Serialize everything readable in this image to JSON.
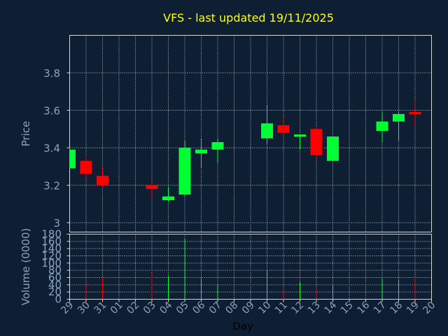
{
  "chart_data": [
    {
      "type": "candlestick",
      "title": "VFS - last updated 19/11/2025",
      "ylabel": "Price",
      "ylim": [
        2.95,
        4.0
      ],
      "yticks": [
        3,
        3.2,
        3.4,
        3.6,
        3.8
      ],
      "ytick_labels": [
        "3",
        "3.2",
        "3.4",
        "3.6",
        "3.8"
      ],
      "grid": true,
      "up_color": "#00ff33",
      "down_color": "#ff0000",
      "candles": [
        {
          "x": "29",
          "open": 3.29,
          "high": 3.4,
          "low": 3.29,
          "close": 3.39
        },
        {
          "x": "30",
          "open": 3.33,
          "high": 3.35,
          "low": 3.23,
          "close": 3.26
        },
        {
          "x": "31",
          "open": 3.25,
          "high": 3.29,
          "low": 3.19,
          "close": 3.2
        },
        {
          "x": "03",
          "open": 3.2,
          "high": 3.22,
          "low": 3.13,
          "close": 3.18
        },
        {
          "x": "04",
          "open": 3.12,
          "high": 3.19,
          "low": 3.11,
          "close": 3.14
        },
        {
          "x": "05",
          "open": 3.15,
          "high": 3.44,
          "low": 3.14,
          "close": 3.4
        },
        {
          "x": "06",
          "open": 3.37,
          "high": 3.45,
          "low": 3.29,
          "close": 3.39
        },
        {
          "x": "07",
          "open": 3.39,
          "high": 3.45,
          "low": 3.32,
          "close": 3.43
        },
        {
          "x": "10",
          "open": 3.45,
          "high": 3.63,
          "low": 3.42,
          "close": 3.53
        },
        {
          "x": "11",
          "open": 3.52,
          "high": 3.57,
          "low": 3.46,
          "close": 3.48
        },
        {
          "x": "12",
          "open": 3.46,
          "high": 3.47,
          "low": 3.39,
          "close": 3.47
        },
        {
          "x": "13",
          "open": 3.5,
          "high": 3.51,
          "low": 3.33,
          "close": 3.36
        },
        {
          "x": "14",
          "open": 3.33,
          "high": 3.46,
          "low": 3.33,
          "close": 3.46
        },
        {
          "x": "17",
          "open": 3.49,
          "high": 3.59,
          "low": 3.43,
          "close": 3.54
        },
        {
          "x": "18",
          "open": 3.54,
          "high": 3.59,
          "low": 3.44,
          "close": 3.58
        },
        {
          "x": "19",
          "open": 3.59,
          "high": 3.64,
          "low": 3.51,
          "close": 3.58
        }
      ]
    },
    {
      "type": "bar",
      "ylabel": "Volume (0000)",
      "xlabel": "Day",
      "ylim": [
        0,
        180
      ],
      "yticks": [
        0,
        20,
        40,
        60,
        80,
        100,
        120,
        140,
        160,
        180
      ],
      "ytick_labels": [
        "0",
        "20",
        "40",
        "60",
        "80",
        "100",
        "120",
        "140",
        "160",
        "180"
      ],
      "categories": [
        "29",
        "30",
        "31",
        "01",
        "02",
        "03",
        "04",
        "05",
        "06",
        "07",
        "08",
        "09",
        "10",
        "11",
        "12",
        "13",
        "14",
        "15",
        "16",
        "17",
        "18",
        "19",
        "20"
      ],
      "values": [
        0,
        45,
        58,
        0,
        0,
        72,
        65,
        168,
        56,
        40,
        0,
        0,
        80,
        28,
        48,
        34,
        40,
        0,
        0,
        58,
        54,
        58,
        0
      ],
      "bar_colors": [
        "#00ff33",
        "#ff0000",
        "#ff0000",
        "#00ff33",
        "#00ff33",
        "#ff0000",
        "#00ff33",
        "#00ff33",
        "#00ff33",
        "#00ff33",
        "#00ff33",
        "#00ff33",
        "#00ff33",
        "#ff0000",
        "#00ff33",
        "#ff0000",
        "#00ff33",
        "#00ff33",
        "#00ff33",
        "#00ff33",
        "#00ff33",
        "#ff0000",
        "#00ff33"
      ],
      "grid": true
    }
  ]
}
